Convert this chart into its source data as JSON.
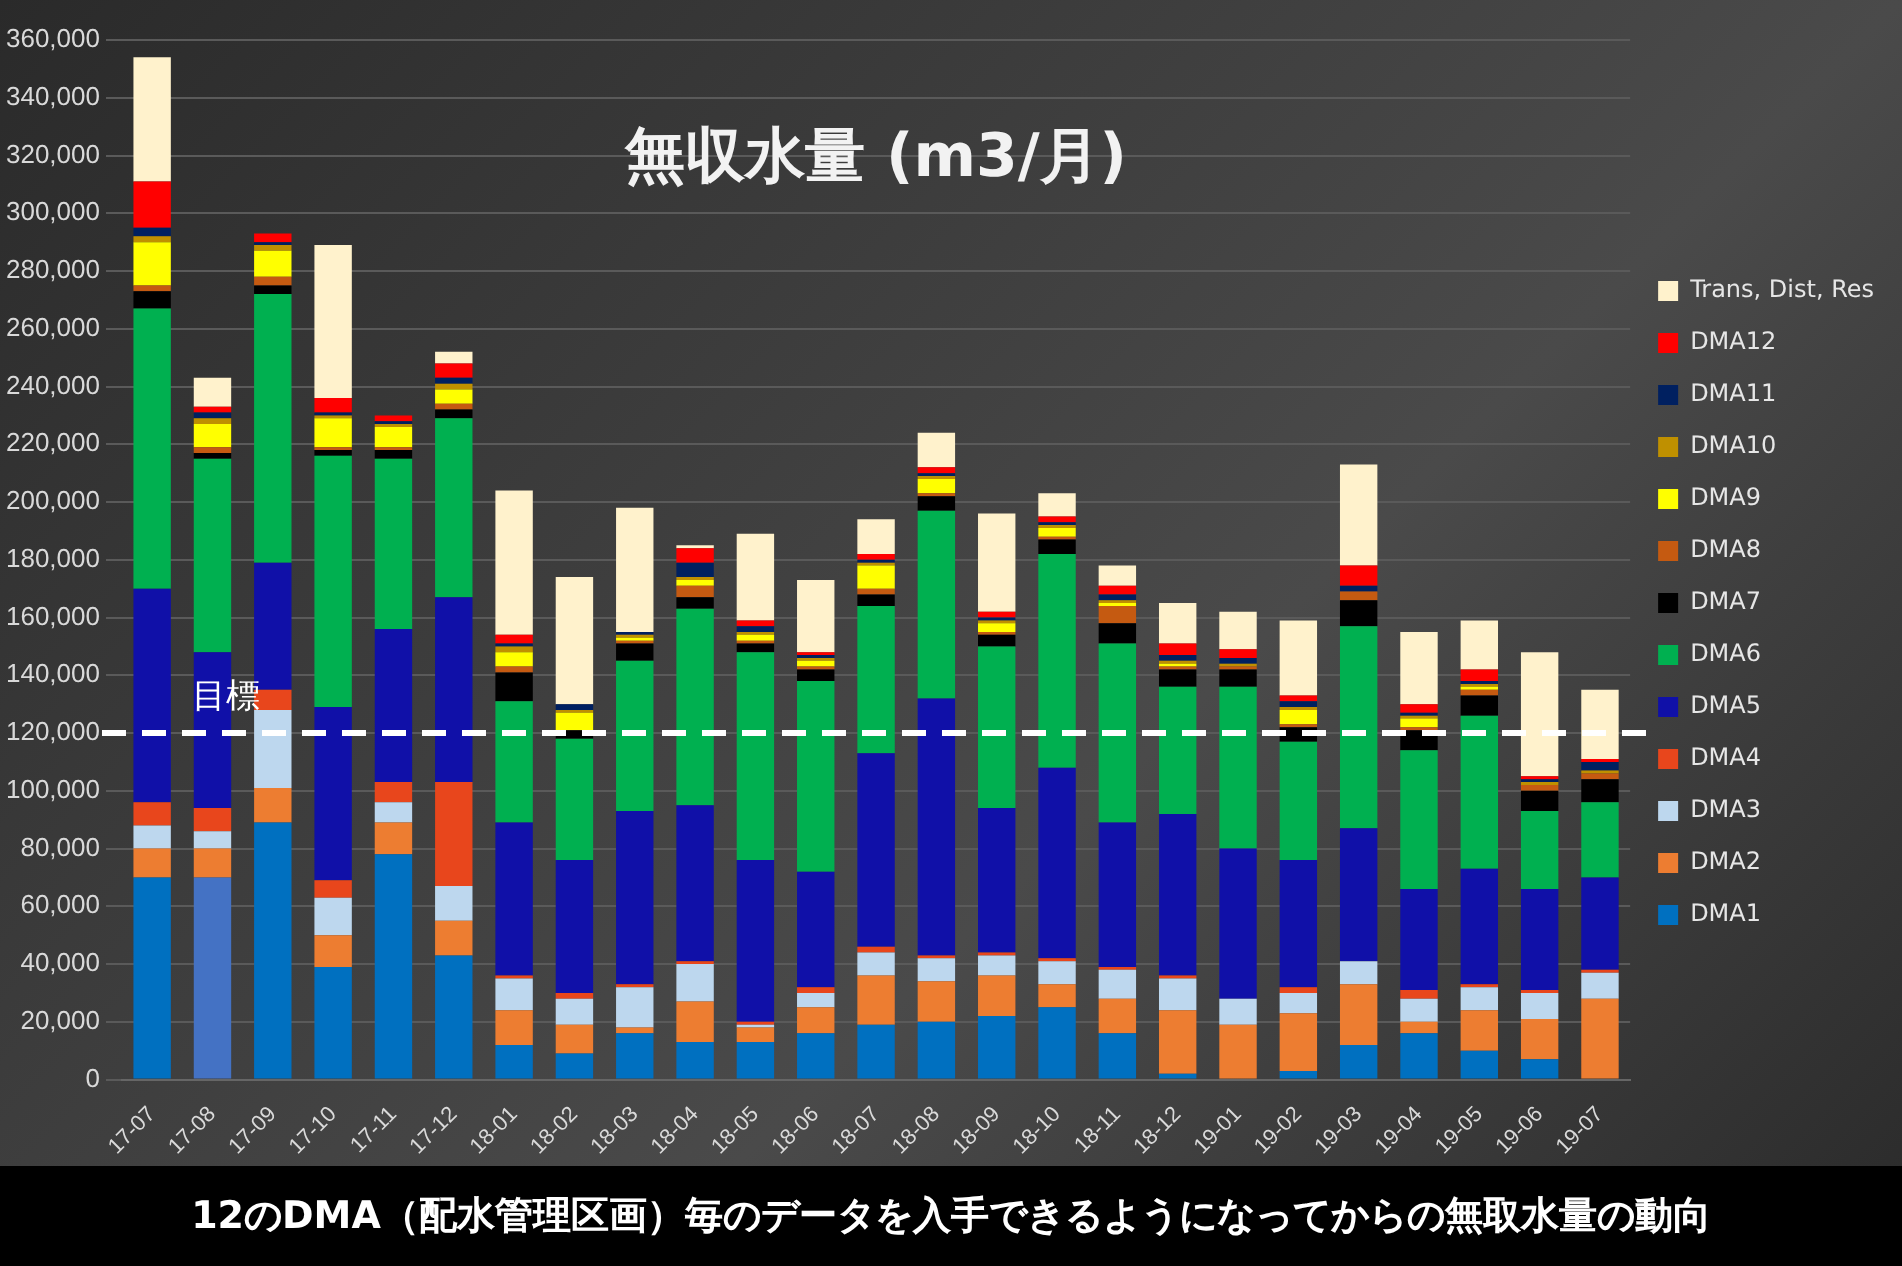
{
  "chart_data": {
    "type": "bar",
    "stacked": true,
    "title": "無収水量 (m3/月)",
    "annotations": [
      "12のDMA（配水管理区画）毎のデータを入手できるようになってからの無取水量の動向"
    ],
    "categories": [
      "17-07",
      "17-08",
      "17-09",
      "17-10",
      "17-11",
      "17-12",
      "18-01",
      "18-02",
      "18-03",
      "18-04",
      "18-05",
      "18-06",
      "18-07",
      "18-08",
      "18-09",
      "18-10",
      "18-11",
      "18-12",
      "19-01",
      "19-02",
      "19-03",
      "19-04",
      "19-05",
      "19-06",
      "19-07"
    ],
    "ylim": [
      0,
      360000
    ],
    "yticks": [
      {
        "value": 0,
        "label": "0"
      },
      {
        "value": 20000,
        "label": "20,000"
      },
      {
        "value": 40000,
        "label": "40,000"
      },
      {
        "value": 60000,
        "label": "60,000"
      },
      {
        "value": 80000,
        "label": "80,000"
      },
      {
        "value": 100000,
        "label": "100,000"
      },
      {
        "value": 120000,
        "label": "120,000"
      },
      {
        "value": 140000,
        "label": "140,000"
      },
      {
        "value": 160000,
        "label": "160,000"
      },
      {
        "value": 180000,
        "label": "180,000"
      },
      {
        "value": 200000,
        "label": "200,000"
      },
      {
        "value": 220000,
        "label": "220,000"
      },
      {
        "value": 240000,
        "label": "240,000"
      },
      {
        "value": 260000,
        "label": "260,000"
      },
      {
        "value": 280000,
        "label": "280,000"
      },
      {
        "value": 300000,
        "label": "300,000"
      },
      {
        "value": 320000,
        "label": "320,000"
      },
      {
        "value": 340000,
        "label": "340,000"
      },
      {
        "value": 360000,
        "label": "360,000"
      }
    ],
    "grid": "y",
    "legend": "right",
    "ref_lines": [
      {
        "axis": "y",
        "value": 120000,
        "label": "目標",
        "color": "#ffffff",
        "line_style": "dashed"
      }
    ],
    "series": [
      {
        "name": "DMA1",
        "color": "#0070c0",
        "colors": [
          "#0070c0",
          "#4472c4",
          "#0070c0",
          "#0070c0",
          "#0070c0",
          "#0070c0",
          "#0070c0",
          "#0070c0",
          "#0070c0",
          "#0070c0",
          "#0070c0",
          "#0070c0",
          "#0070c0",
          "#0070c0",
          "#0070c0",
          "#0070c0",
          "#0070c0",
          "#0070c0",
          "#0070c0",
          "#0070c0",
          "#0070c0",
          "#0070c0",
          "#0070c0",
          "#0070c0",
          "#0070c0"
        ],
        "values": [
          70000,
          70000,
          89000,
          39000,
          78000,
          43000,
          12000,
          9000,
          16000,
          13000,
          13000,
          16000,
          19000,
          20000,
          22000,
          25000,
          16000,
          2000,
          null,
          3000,
          12000,
          16000,
          10000,
          7000,
          null
        ]
      },
      {
        "name": "DMA2",
        "color": "#ed7d31",
        "values": [
          10000,
          10000,
          12000,
          11000,
          11000,
          12000,
          12000,
          10000,
          2000,
          14000,
          5000,
          9000,
          17000,
          14000,
          14000,
          8000,
          12000,
          22000,
          19000,
          20000,
          21000,
          4000,
          14000,
          14000,
          28000
        ]
      },
      {
        "name": "DMA3",
        "color": "#bdd7ee",
        "values": [
          8000,
          6000,
          27000,
          13000,
          7000,
          12000,
          11000,
          9000,
          14000,
          13000,
          1000,
          5000,
          8000,
          8000,
          7000,
          8000,
          10000,
          11000,
          9000,
          7000,
          8000,
          8000,
          8000,
          9000,
          9000
        ]
      },
      {
        "name": "DMA4",
        "color": "#e8461c",
        "values": [
          8000,
          8000,
          7000,
          6000,
          7000,
          36000,
          1000,
          2000,
          1000,
          1000,
          1000,
          2000,
          2000,
          1000,
          1000,
          1000,
          1000,
          1000,
          null,
          2000,
          null,
          3000,
          1000,
          1000,
          1000
        ]
      },
      {
        "name": "DMA5",
        "color": "#1010a8",
        "values": [
          74000,
          54000,
          44000,
          60000,
          53000,
          64000,
          53000,
          46000,
          60000,
          54000,
          56000,
          40000,
          67000,
          89000,
          50000,
          66000,
          50000,
          56000,
          52000,
          44000,
          46000,
          35000,
          40000,
          35000,
          32000
        ]
      },
      {
        "name": "DMA6",
        "color": "#00b050",
        "values": [
          97000,
          67000,
          93000,
          87000,
          59000,
          62000,
          42000,
          42000,
          52000,
          68000,
          72000,
          66000,
          51000,
          65000,
          56000,
          74000,
          62000,
          44000,
          56000,
          41000,
          70000,
          48000,
          53000,
          27000,
          26000
        ]
      },
      {
        "name": "DMA7",
        "color": "#000000",
        "values": [
          6000,
          2000,
          3000,
          2000,
          3000,
          3000,
          10000,
          3000,
          6000,
          4000,
          3000,
          4000,
          4000,
          5000,
          4000,
          5000,
          7000,
          6000,
          6000,
          5000,
          9000,
          7000,
          7000,
          7000,
          8000
        ]
      },
      {
        "name": "DMA8",
        "color": "#c55a11",
        "values": [
          2000,
          2000,
          3000,
          1000,
          1000,
          2000,
          2000,
          null,
          1000,
          4000,
          1000,
          1000,
          2000,
          1000,
          1000,
          1000,
          6000,
          1000,
          1000,
          1000,
          3000,
          1000,
          2000,
          2000,
          2000
        ]
      },
      {
        "name": "DMA9",
        "color": "#ffff00",
        "values": [
          15000,
          8000,
          9000,
          10000,
          7000,
          5000,
          5000,
          6000,
          1000,
          2000,
          2000,
          2000,
          8000,
          5000,
          3000,
          3000,
          1000,
          1000,
          null,
          5000,
          null,
          3000,
          1000,
          null,
          null
        ]
      },
      {
        "name": "DMA10",
        "color": "#bf9000",
        "values": [
          2000,
          2000,
          2000,
          1000,
          1000,
          2000,
          2000,
          1000,
          1000,
          1000,
          1000,
          1000,
          1000,
          1000,
          1000,
          1000,
          1000,
          1000,
          1000,
          1000,
          null,
          1000,
          1000,
          1000,
          1000
        ]
      },
      {
        "name": "DMA11",
        "color": "#002060",
        "values": [
          3000,
          2000,
          1000,
          1000,
          1000,
          2000,
          1000,
          2000,
          1000,
          5000,
          2000,
          1000,
          1000,
          1000,
          1000,
          1000,
          2000,
          2000,
          2000,
          2000,
          2000,
          1000,
          1000,
          1000,
          3000
        ]
      },
      {
        "name": "DMA12",
        "color": "#ff0000",
        "values": [
          16000,
          2000,
          3000,
          5000,
          2000,
          5000,
          3000,
          null,
          null,
          5000,
          2000,
          1000,
          2000,
          2000,
          2000,
          2000,
          3000,
          4000,
          3000,
          2000,
          7000,
          3000,
          4000,
          1000,
          1000
        ]
      },
      {
        "name": "Trans, Dist, Res",
        "color": "#fff2cc",
        "values": [
          43000,
          10000,
          null,
          53000,
          null,
          4000,
          50000,
          44000,
          43000,
          1000,
          30000,
          25000,
          12000,
          12000,
          34000,
          8000,
          7000,
          14000,
          13000,
          26000,
          35000,
          25000,
          17000,
          43000,
          24000
        ]
      }
    ]
  }
}
